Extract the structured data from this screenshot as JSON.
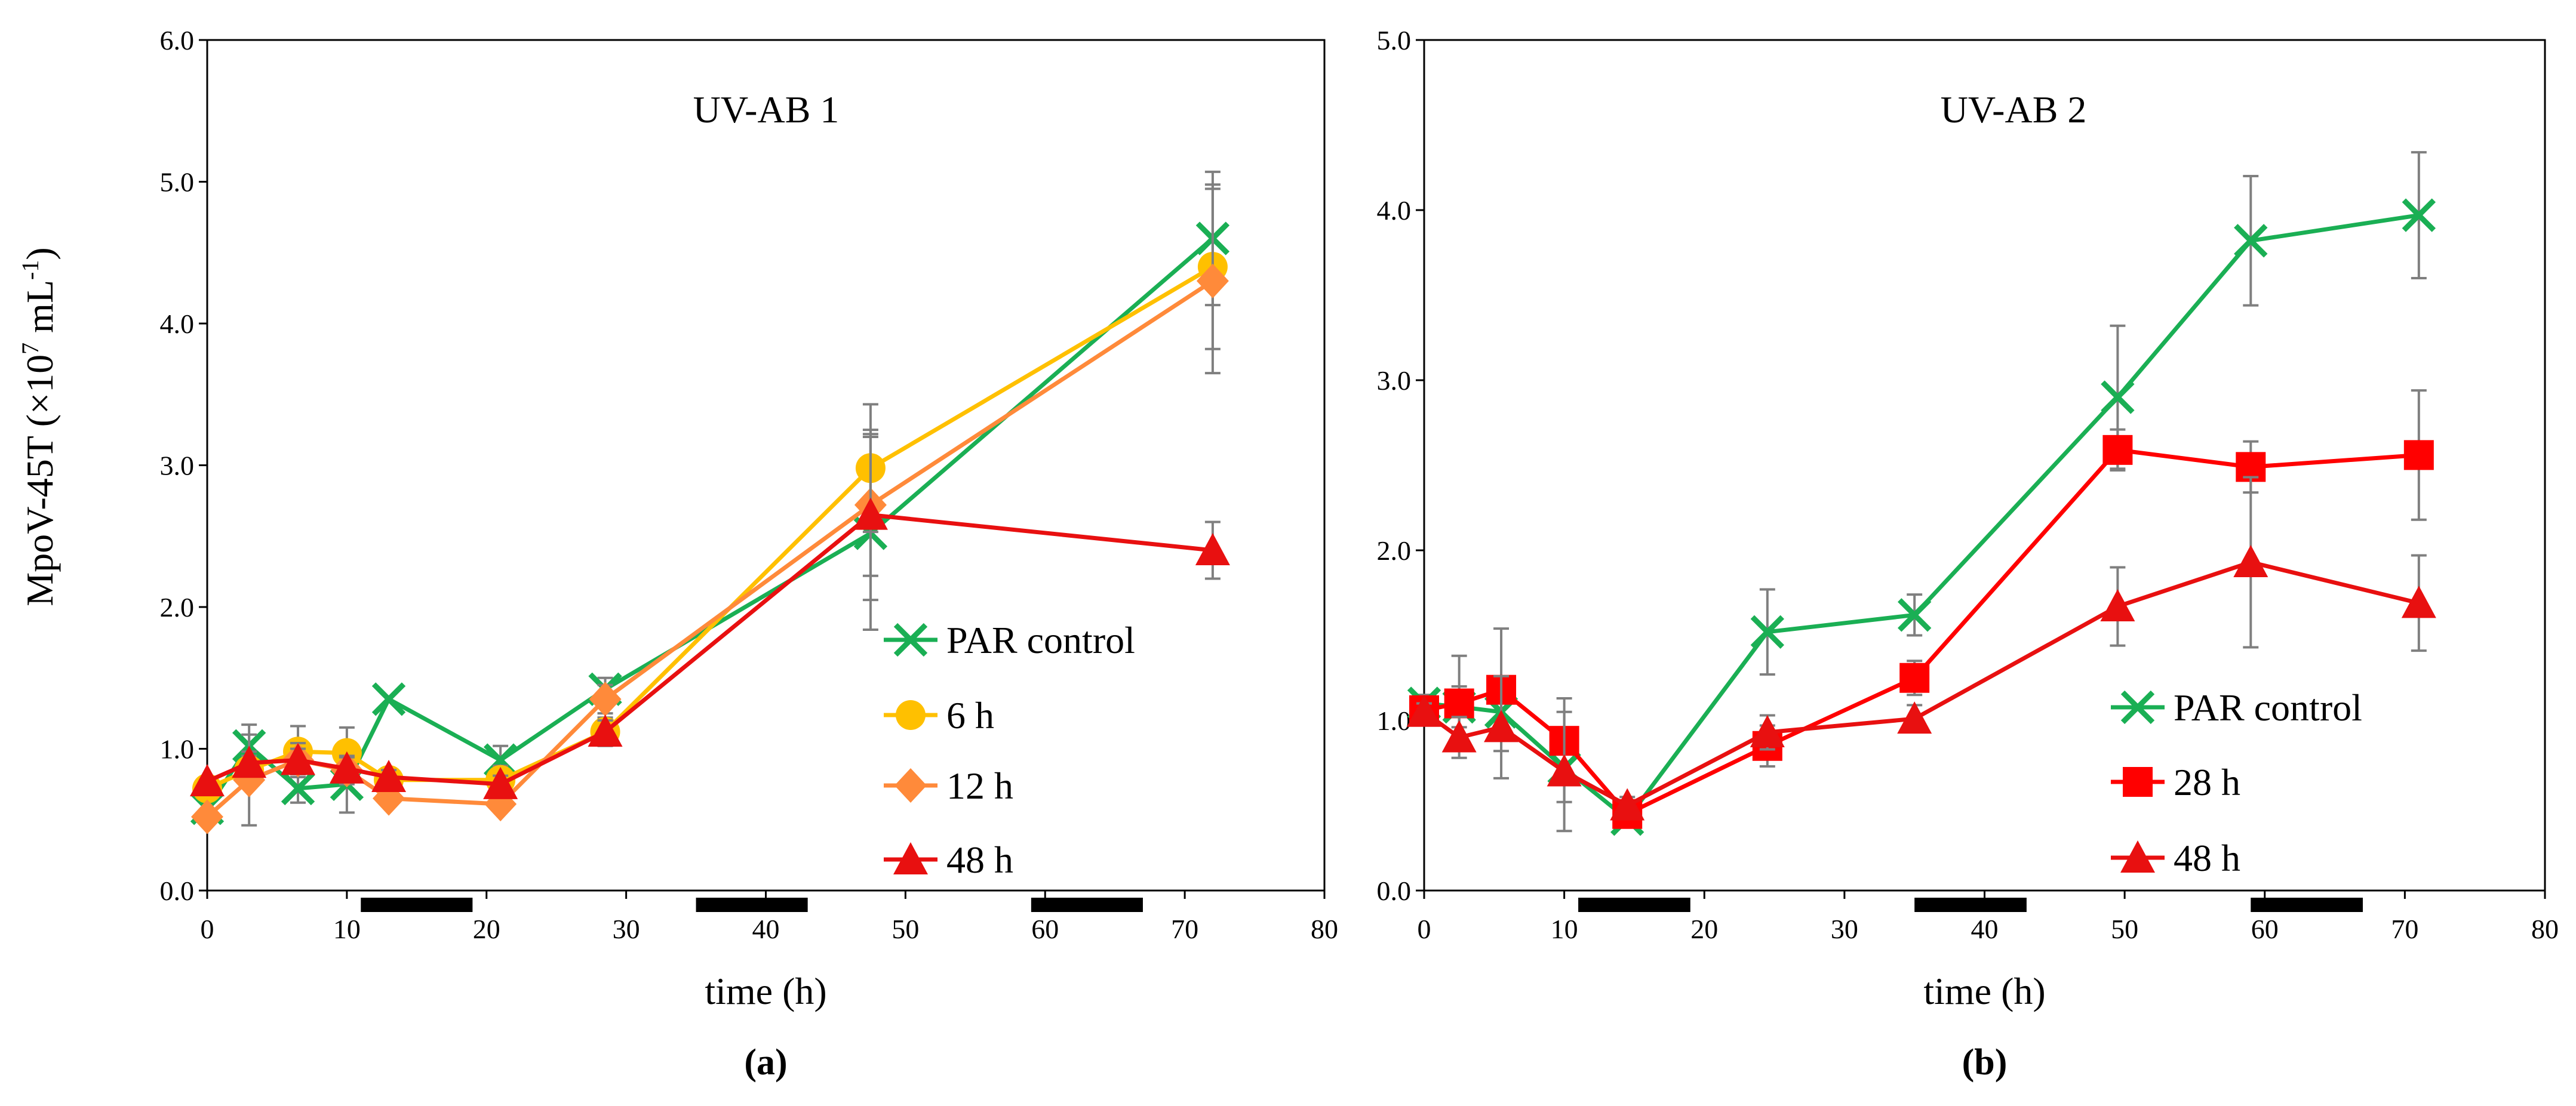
{
  "figure": {
    "ylabel_main": "MpoV-45T (×10",
    "ylabel_exp": "7",
    "ylabel_unit": " mL",
    "ylabel_exp2": "-1",
    "ylabel_close": ")"
  },
  "chart_data": [
    {
      "type": "line",
      "panel_label": "(a)",
      "title": "UV-AB 1",
      "xlabel": "time (h)",
      "xlim": [
        0,
        80
      ],
      "ylim": [
        0,
        6
      ],
      "xticks": [
        "0",
        "10",
        "20",
        "30",
        "40",
        "50",
        "60",
        "70",
        "80"
      ],
      "yticks": [
        "0.0",
        "1.0",
        "2.0",
        "3.0",
        "4.0",
        "5.0",
        "6.0"
      ],
      "grid": false,
      "legend_position": "bottom-right",
      "dark_periods": [
        [
          11,
          19
        ],
        [
          35,
          43
        ],
        [
          59,
          67
        ]
      ],
      "series": [
        {
          "name": "PAR control",
          "color": "#1aaf54",
          "marker": "x",
          "x": [
            0,
            3,
            6.5,
            10,
            13,
            21,
            28.5,
            47.5,
            72
          ],
          "y": [
            0.58,
            1.02,
            0.72,
            0.75,
            1.35,
            0.92,
            1.42,
            2.52,
            4.6
          ],
          "err": [
            0,
            0.15,
            0.1,
            0.2,
            0,
            0.1,
            0.08,
            0.68,
            0.47
          ]
        },
        {
          "name": "6 h",
          "color": "#ffc000",
          "marker": "circle",
          "x": [
            0,
            3,
            6.5,
            10,
            13,
            21,
            28.5,
            47.5,
            72
          ],
          "y": [
            0.72,
            0.85,
            0.98,
            0.97,
            0.78,
            0.78,
            1.12,
            2.98,
            4.4
          ],
          "err": [
            0,
            0.1,
            0.18,
            0.18,
            0.05,
            0.1,
            0.1,
            0.45,
            0.58
          ]
        },
        {
          "name": "12 h",
          "color": "#ff8a3a",
          "marker": "diamond",
          "x": [
            0,
            3,
            6.5,
            10,
            13,
            21,
            28.5,
            47.5,
            72
          ],
          "y": [
            0.52,
            0.78,
            0.92,
            0.85,
            0.65,
            0.61,
            1.35,
            2.72,
            4.3
          ],
          "err": [
            0,
            0.32,
            0.12,
            0.1,
            0.05,
            0.05,
            0.1,
            0.5,
            0.65
          ]
        },
        {
          "name": "48 h",
          "color": "#e81010",
          "marker": "triangle",
          "x": [
            0,
            3,
            6.5,
            10,
            13,
            21,
            28.5,
            47.5,
            72
          ],
          "y": [
            0.77,
            0.9,
            0.92,
            0.86,
            0.8,
            0.75,
            1.12,
            2.65,
            2.4
          ],
          "err": [
            0,
            0.08,
            0.08,
            0.08,
            0.05,
            0.06,
            0.08,
            0.6,
            0.2
          ]
        }
      ]
    },
    {
      "type": "line",
      "panel_label": "(b)",
      "title": "UV-AB 2",
      "xlabel": "time (h)",
      "xlim": [
        0,
        80
      ],
      "ylim": [
        0,
        5
      ],
      "xticks": [
        "0",
        "10",
        "20",
        "30",
        "40",
        "50",
        "60",
        "70",
        "80"
      ],
      "yticks": [
        "0.0",
        "1.0",
        "2.0",
        "3.0",
        "4.0",
        "5.0"
      ],
      "grid": false,
      "legend_position": "bottom-right",
      "dark_periods": [
        [
          11,
          19
        ],
        [
          35,
          43
        ],
        [
          59,
          67
        ]
      ],
      "series": [
        {
          "name": "PAR control",
          "color": "#1aaf54",
          "marker": "x",
          "x": [
            0,
            2.5,
            5.5,
            10,
            14.5,
            24.5,
            35,
            49.5,
            59,
            71
          ],
          "y": [
            1.1,
            1.08,
            1.05,
            0.72,
            0.42,
            1.52,
            1.62,
            2.9,
            3.82,
            3.97
          ],
          "err": [
            0.05,
            0.12,
            0.1,
            0.2,
            0.05,
            0.25,
            0.12,
            0.42,
            0.38,
            0.37
          ]
        },
        {
          "name": "28 h",
          "color": "#ff0000",
          "marker": "square",
          "x": [
            0,
            2.5,
            5.5,
            10,
            14.5,
            24.5,
            35,
            49.5,
            59,
            71
          ],
          "y": [
            1.06,
            1.1,
            1.18,
            0.88,
            0.45,
            0.85,
            1.25,
            2.59,
            2.49,
            2.56
          ],
          "err": [
            0.05,
            0.28,
            0.36,
            0.25,
            0.05,
            0.12,
            0.1,
            0.12,
            0.15,
            0.38
          ]
        },
        {
          "name": "48 h",
          "color": "#e81010",
          "marker": "triangle",
          "x": [
            0,
            2.5,
            5.5,
            10,
            14.5,
            24.5,
            35,
            49.5,
            59,
            71
          ],
          "y": [
            1.05,
            0.9,
            0.96,
            0.7,
            0.5,
            0.93,
            1.01,
            1.67,
            1.93,
            1.69
          ],
          "err": [
            0.05,
            0.12,
            0.3,
            0.35,
            0.05,
            0.1,
            0.08,
            0.23,
            0.5,
            0.28
          ]
        }
      ]
    }
  ]
}
